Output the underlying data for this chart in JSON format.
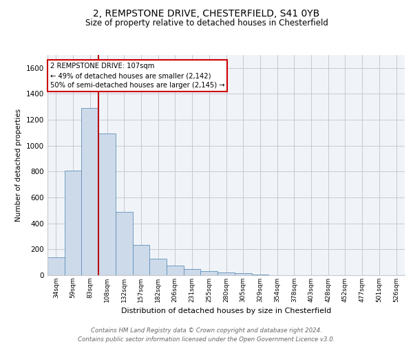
{
  "title_line1": "2, REMPSTONE DRIVE, CHESTERFIELD, S41 0YB",
  "title_line2": "Size of property relative to detached houses in Chesterfield",
  "xlabel": "Distribution of detached houses by size in Chesterfield",
  "ylabel": "Number of detached properties",
  "categories": [
    "34sqm",
    "59sqm",
    "83sqm",
    "108sqm",
    "132sqm",
    "157sqm",
    "182sqm",
    "206sqm",
    "231sqm",
    "255sqm",
    "280sqm",
    "305sqm",
    "329sqm",
    "354sqm",
    "378sqm",
    "403sqm",
    "428sqm",
    "452sqm",
    "477sqm",
    "501sqm",
    "526sqm"
  ],
  "values": [
    140,
    810,
    1290,
    1095,
    490,
    235,
    130,
    75,
    50,
    30,
    20,
    15,
    5,
    2,
    1,
    0,
    0,
    1,
    0,
    0,
    0
  ],
  "bar_color": "#cddaea",
  "bar_edge_color": "#6090b8",
  "grid_color": "#c8c8d0",
  "background_color": "#ffffff",
  "vline_x": 3,
  "vline_color": "#bb0000",
  "annotation_line1": "2 REMPSTONE DRIVE: 107sqm",
  "annotation_line2": "← 49% of detached houses are smaller (2,142)",
  "annotation_line3": "50% of semi-detached houses are larger (2,145) →",
  "annotation_box_color": "#ffffff",
  "annotation_box_edge": "#cc0000",
  "ylim": [
    0,
    1700
  ],
  "yticks": [
    0,
    200,
    400,
    600,
    800,
    1000,
    1200,
    1400,
    1600
  ],
  "footer_line1": "Contains HM Land Registry data © Crown copyright and database right 2024.",
  "footer_line2": "Contains public sector information licensed under the Open Government Licence v3.0."
}
